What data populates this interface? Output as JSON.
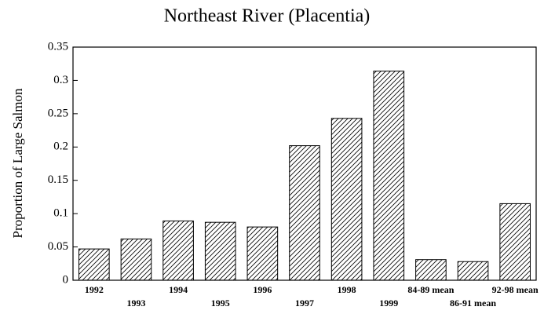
{
  "chart_data": {
    "type": "bar",
    "title": "Northeast River (Placentia)",
    "y_label": "Proportion of Large Salmon",
    "categories": [
      "1992",
      "1993",
      "1994",
      "1995",
      "1996",
      "1997",
      "1998",
      "1999",
      "84-89 mean",
      "86-91 mean",
      "92-98 mean"
    ],
    "values": [
      0.047,
      0.062,
      0.089,
      0.087,
      0.08,
      0.202,
      0.243,
      0.314,
      0.031,
      0.028,
      0.115
    ],
    "color": "#000000",
    "ylim": [
      0,
      0.35
    ],
    "yticks": [
      0,
      0.05,
      0.1,
      0.15,
      0.2,
      0.25,
      0.3,
      0.35
    ]
  }
}
